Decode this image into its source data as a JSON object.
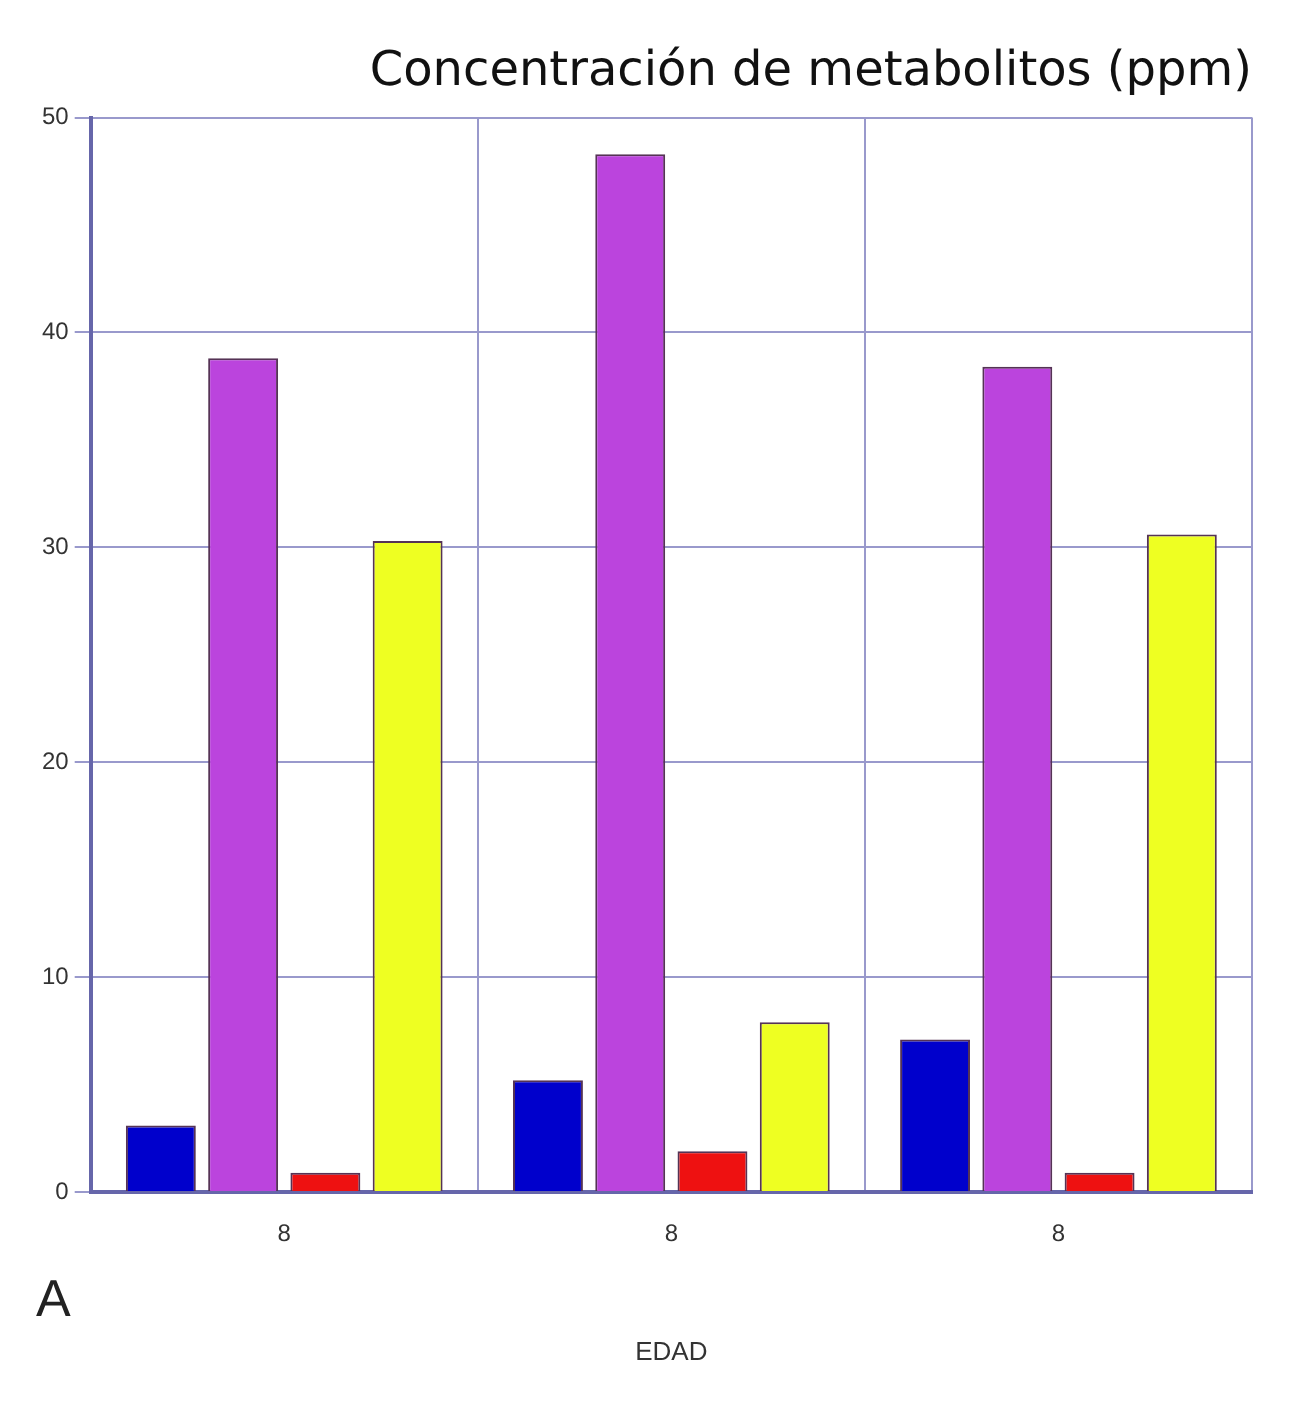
{
  "chart_data": {
    "type": "bar",
    "title": "Concentración de metabolitos (ppm)",
    "xlabel": "EDAD",
    "categories": [
      "8",
      "8",
      "8"
    ],
    "series": [
      {
        "color": "#0000cc",
        "values": [
          3.1,
          5.2,
          7.1
        ]
      },
      {
        "color": "#bb44dd",
        "values": [
          38.8,
          48.3,
          38.4
        ]
      },
      {
        "color": "#ee1111",
        "values": [
          0.9,
          1.9,
          0.9
        ]
      },
      {
        "color": "#eeff22",
        "values": [
          30.3,
          7.9,
          30.6
        ]
      }
    ],
    "ylim": [
      0,
      50
    ],
    "yticks": [
      0,
      10,
      20,
      30,
      40,
      50
    ],
    "grid": true,
    "legend": false,
    "annotations": [
      "A"
    ]
  }
}
